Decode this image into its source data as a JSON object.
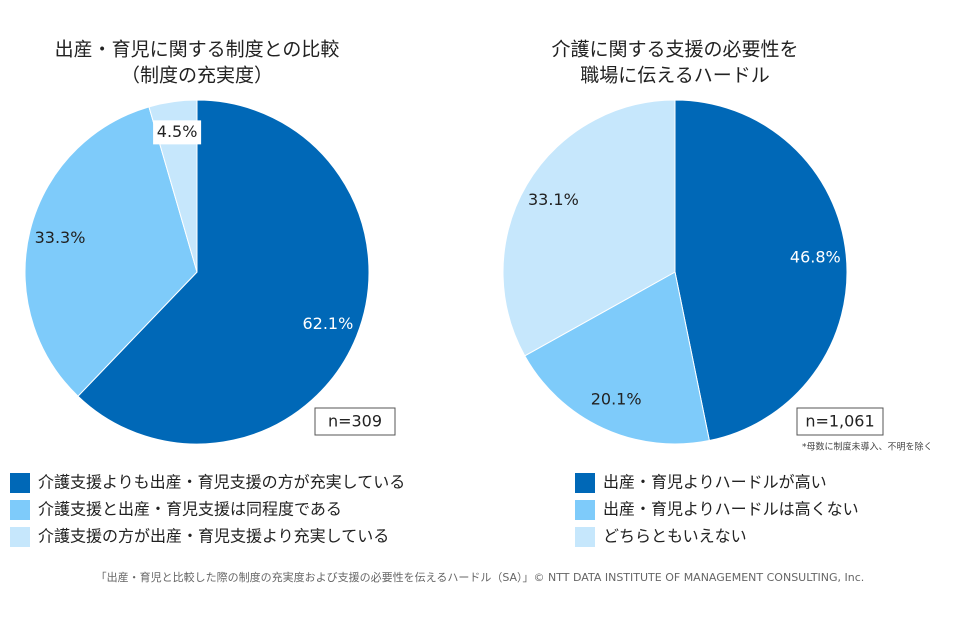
{
  "chart_data": [
    {
      "type": "pie",
      "title": [
        "出産・育児に関する制度との比較",
        "（制度の充実度）"
      ],
      "categories": [
        "介護支援よりも出産・育児支援の方が充実している",
        "介護支援と出産・育児支援は同程度である",
        "介護支援の方が出産・育児支援より充実している"
      ],
      "values": [
        62.1,
        33.3,
        4.5
      ],
      "value_labels": [
        "62.1%",
        "33.3%",
        "4.5%"
      ],
      "colors": [
        "#0068b7",
        "#7ecbfa",
        "#c6e7fc"
      ],
      "sample": "n=309"
    },
    {
      "type": "pie",
      "title": [
        "介護に関する支援の必要性を",
        "職場に伝えるハードル"
      ],
      "categories": [
        "出産・育児よりハードルが高い",
        "出産・育児よりハードルは高くない",
        "どちらともいえない"
      ],
      "values": [
        46.8,
        20.1,
        33.1
      ],
      "value_labels": [
        "46.8%",
        "20.1%",
        "33.1%"
      ],
      "colors": [
        "#0068b7",
        "#7ecbfa",
        "#c6e7fc"
      ],
      "sample": "n=1,061",
      "note": "*母数に制度未導入、不明を除く"
    }
  ],
  "source": "「出産・育児と比較した際の制度の充実度および支援の必要性を伝えるハードル（SA）」© NTT DATA INSTITUTE OF MANAGEMENT CONSULTING, Inc."
}
